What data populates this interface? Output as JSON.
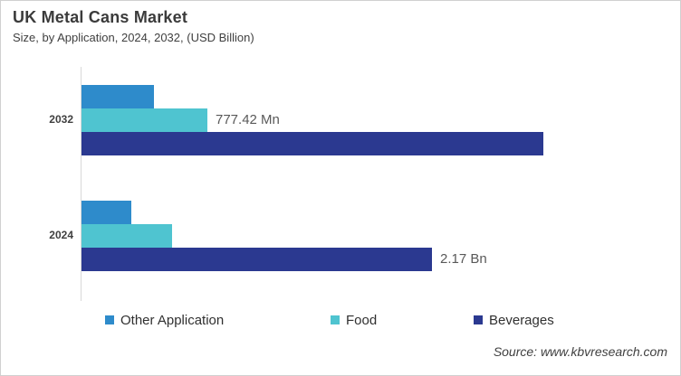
{
  "header": {
    "title": "UK Metal Cans Market",
    "subtitle": "Size, by Application, 2024, 2032, (USD Billion)"
  },
  "chart_data": {
    "type": "bar",
    "orientation": "horizontal",
    "unit": "USD Billion",
    "categories": [
      "2032",
      "2024"
    ],
    "series": [
      {
        "name": "Other Application",
        "color": "#2E8BCB",
        "values": [
          0.45,
          0.31
        ],
        "labels": [
          "",
          ""
        ]
      },
      {
        "name": "Food",
        "color": "#4FC4D0",
        "values": [
          0.77742,
          0.56
        ],
        "labels": [
          "777.42 Mn",
          ""
        ]
      },
      {
        "name": "Beverages",
        "color": "#2B3990",
        "values": [
          2.86,
          2.17
        ],
        "labels": [
          "",
          "2.17 Bn"
        ]
      }
    ],
    "xlim": [
      0,
      3.0
    ],
    "grid": false,
    "legend_position": "bottom",
    "axis_color": "#D9D9D9",
    "data_label_color": "#595959"
  },
  "footer": {
    "source": "Source: www.kbvresearch.com"
  }
}
